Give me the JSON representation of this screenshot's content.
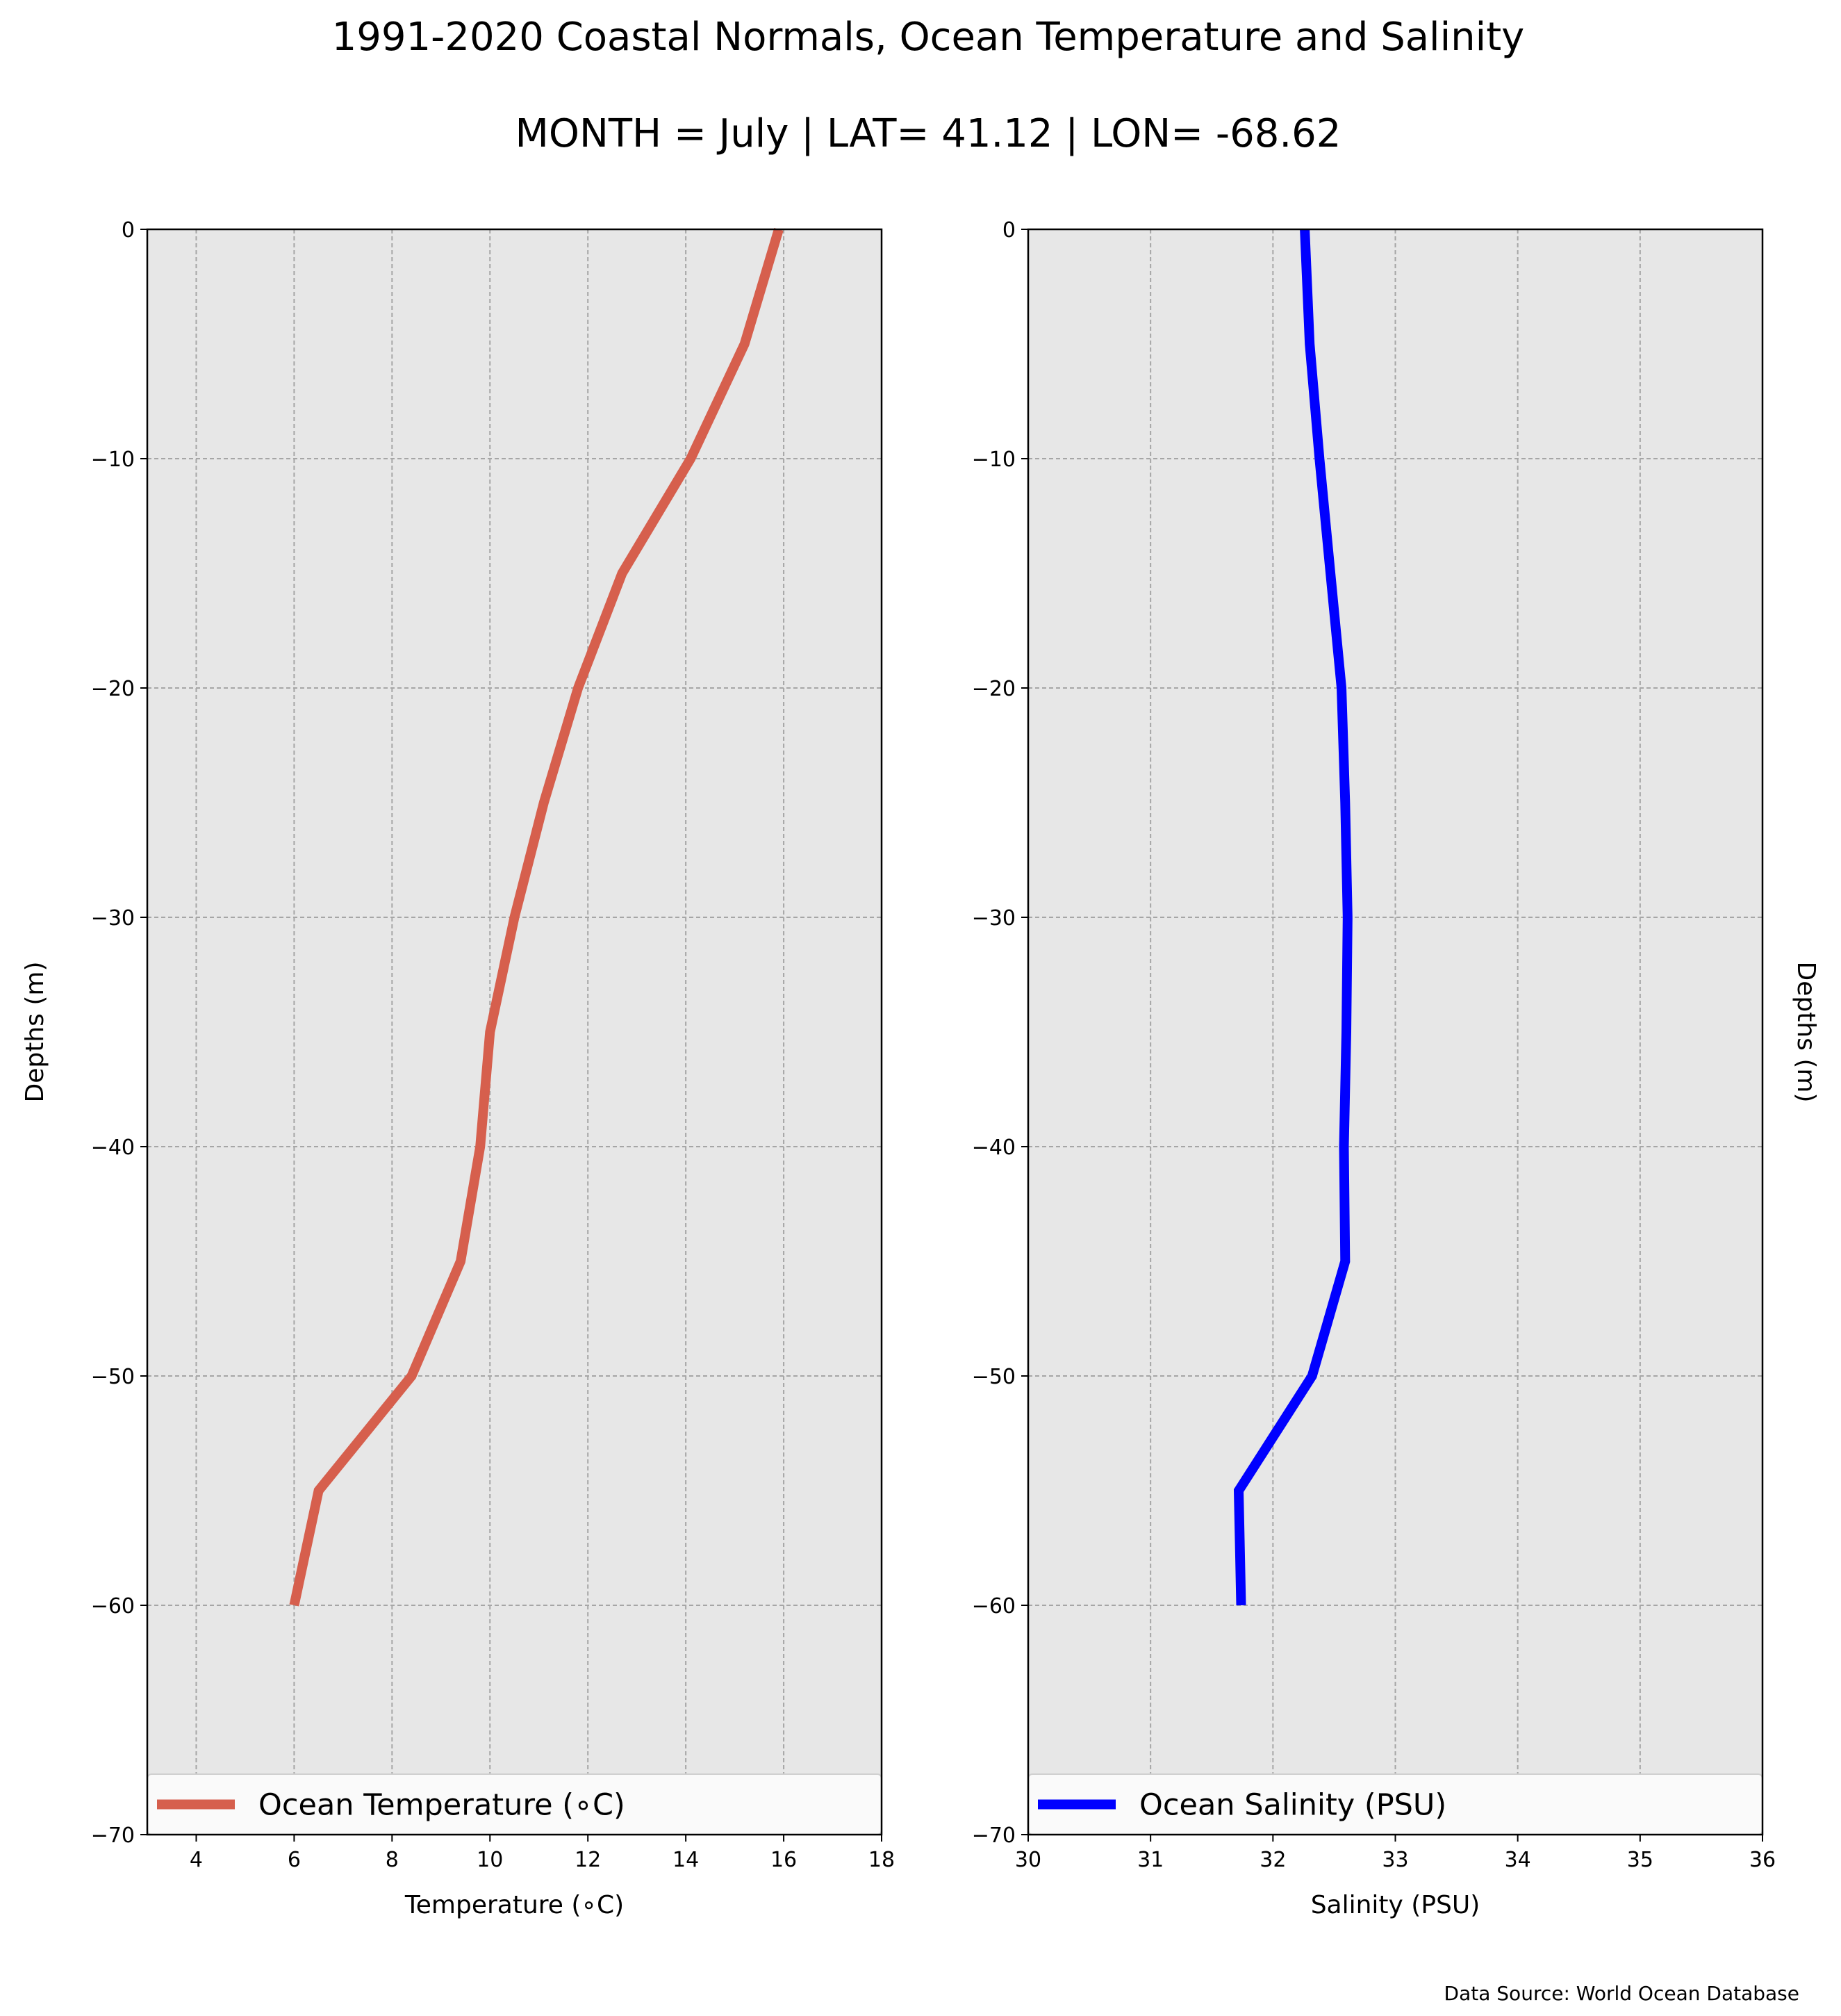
{
  "title": "1991-2020 Coastal Normals, Ocean Temperature and Salinity",
  "subtitle": "MONTH = July | LAT= 41.12 | LON= -68.62",
  "source": "Data Source: World Ocean Database",
  "colors": {
    "temperature": "#d65f4d",
    "salinity": "#0000ff",
    "plot_background": "#e7e7e7",
    "grid": "#a6a6a6"
  },
  "chart_data": [
    {
      "type": "line",
      "xlabel": "Temperature ($^\\circ$C)",
      "xlabel_display": "Temperature (∘C)",
      "ylabel": "Depths (m)",
      "xlim": [
        3,
        18
      ],
      "ylim": [
        -70,
        0
      ],
      "xticks": [
        4,
        6,
        8,
        10,
        12,
        14,
        16,
        18
      ],
      "yticks": [
        0,
        -10,
        -20,
        -30,
        -40,
        -50,
        -60,
        -70
      ],
      "ytick_labels": [
        "0",
        "−10",
        "−20",
        "−30",
        "−40",
        "−50",
        "−60",
        "−70"
      ],
      "grid": true,
      "legend_position": "lower center",
      "series": [
        {
          "name": "Ocean Temperature (∘C)",
          "color": "#d65f4d",
          "x": [
            15.9,
            15.2,
            14.1,
            12.7,
            11.8,
            11.1,
            10.5,
            10.0,
            9.8,
            9.4,
            8.4,
            6.5,
            6.0
          ],
          "y": [
            0,
            -5,
            -10,
            -15,
            -20,
            -25,
            -30,
            -35,
            -40,
            -45,
            -50,
            -55,
            -60
          ]
        }
      ]
    },
    {
      "type": "line",
      "xlabel": "Salinity (PSU)",
      "ylabel": "Depths (m)",
      "xlim": [
        30,
        36
      ],
      "ylim": [
        -70,
        0
      ],
      "xticks": [
        30,
        31,
        32,
        33,
        34,
        35,
        36
      ],
      "yticks": [
        0,
        -10,
        -20,
        -30,
        -40,
        -50,
        -60,
        -70
      ],
      "ytick_labels": [
        "0",
        "−10",
        "−20",
        "−30",
        "−40",
        "−50",
        "−60",
        "−70"
      ],
      "grid": true,
      "legend_position": "lower center",
      "series": [
        {
          "name": "Ocean Salinity (PSU)",
          "color": "#0000ff",
          "x": [
            32.26,
            32.3,
            32.38,
            32.47,
            32.56,
            32.59,
            32.61,
            32.6,
            32.58,
            32.59,
            32.32,
            31.72,
            31.74
          ],
          "y": [
            0,
            -5,
            -10,
            -15,
            -20,
            -25,
            -30,
            -35,
            -40,
            -45,
            -50,
            -55,
            -60
          ]
        }
      ]
    }
  ]
}
